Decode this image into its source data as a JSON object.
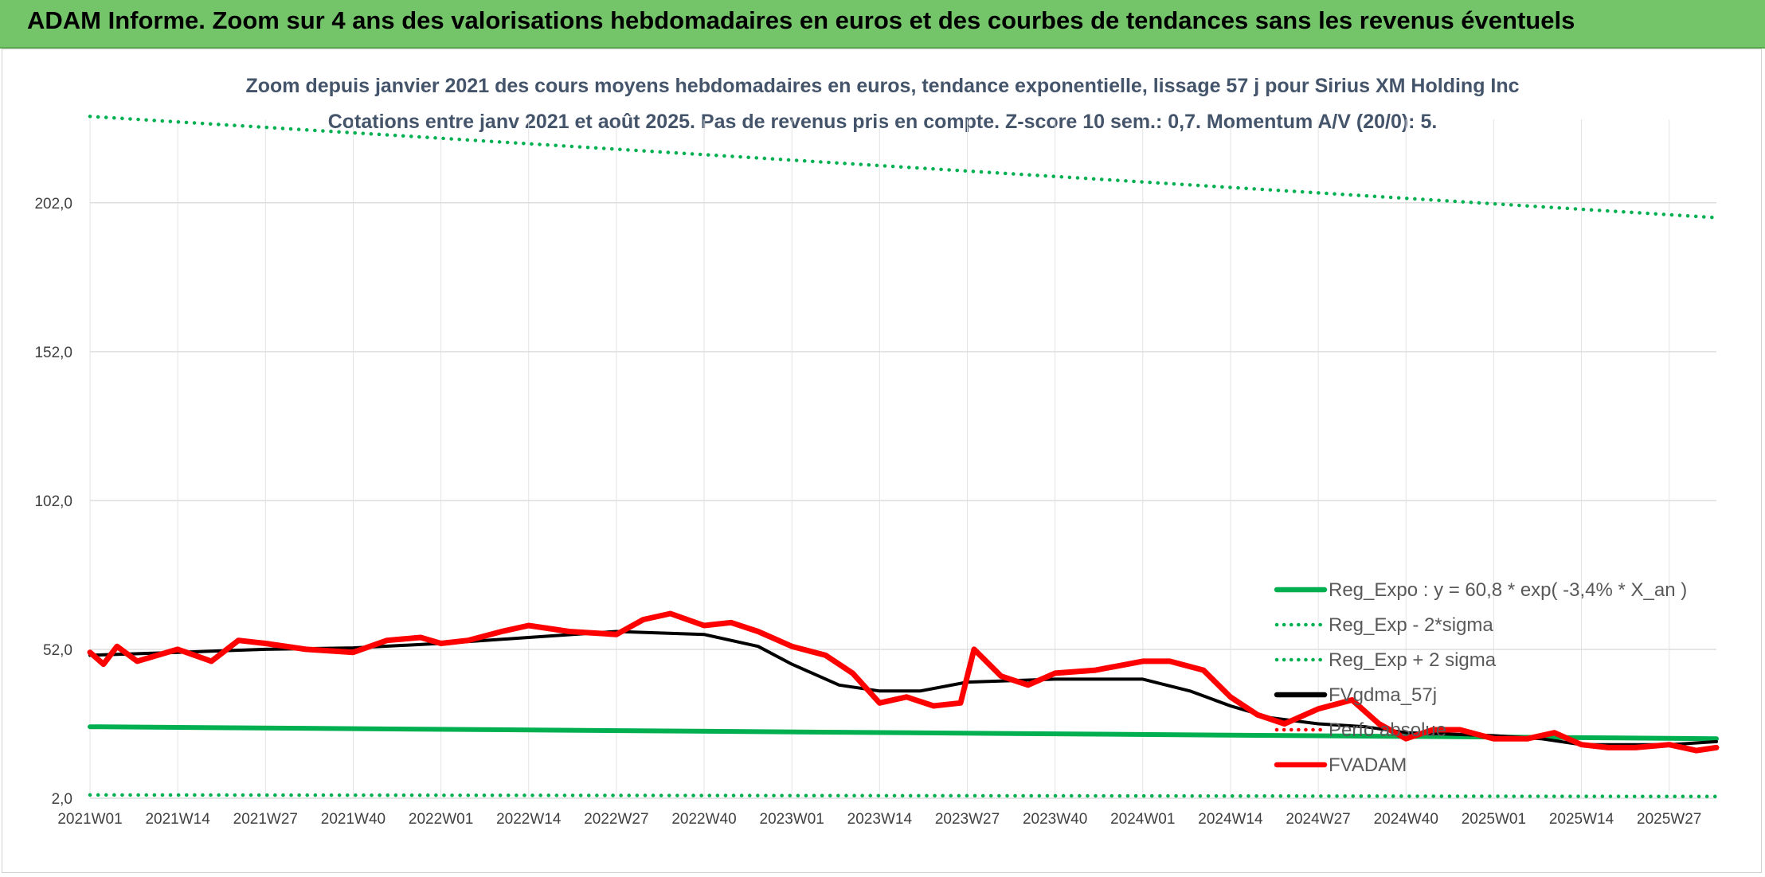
{
  "header": {
    "title": "ADAM Informe. Zoom sur 4 ans des valorisations hebdomadaires en euros et des courbes de tendances sans les revenus éventuels"
  },
  "chart_data": {
    "type": "line",
    "title": "Zoom depuis janvier 2021 des cours moyens hebdomadaires en euros, tendance exponentielle, lissage 57 j pour Sirius XM Holding Inc",
    "subtitle": "Cotations entre janv 2021 et août 2025. Pas de revenus pris en compte. Z-score 10 sem.: 0,7. Momentum A/V (20/0): 5.",
    "xlabel": "",
    "ylabel": "",
    "ylim": [
      2,
      230
    ],
    "yticks": [
      "2,0",
      "52,0",
      "102,0",
      "152,0",
      "202,0"
    ],
    "ytick_values": [
      2,
      52,
      102,
      152,
      202
    ],
    "xticks": [
      "2021W01",
      "2021W14",
      "2021W27",
      "2021W40",
      "2022W01",
      "2022W14",
      "2022W27",
      "2022W40",
      "2023W01",
      "2023W14",
      "2023W27",
      "2023W40",
      "2024W01",
      "2024W14",
      "2024W27",
      "2024W40",
      "2025W01",
      "2025W14",
      "2025W27"
    ],
    "grid": "vertical and horizontal",
    "legend_position": "right",
    "x_range": [
      "2021W01",
      "2025W34"
    ],
    "series": [
      {
        "name": "Reg_Expo : y = 60,8 * exp( -3,4% *  X_an )",
        "color": "#00b050",
        "style": "solid",
        "x": [
          "2021W01",
          "2025W34"
        ],
        "values": [
          26.0,
          22.0
        ]
      },
      {
        "name": "Reg_Exp - 2*sigma",
        "color": "#00b050",
        "style": "dotted",
        "x": [
          "2021W01",
          "2025W34"
        ],
        "values": [
          3.1,
          2.6
        ]
      },
      {
        "name": "Reg_Exp + 2 sigma",
        "color": "#00b050",
        "style": "dotted",
        "x": [
          "2021W01",
          "2025W34"
        ],
        "values": [
          231,
          197
        ]
      },
      {
        "name": "FVgdma_57j",
        "color": "#000000",
        "style": "solid",
        "x": [
          "2021W01",
          "2021W14",
          "2021W27",
          "2021W40",
          "2022W01",
          "2022W14",
          "2022W27",
          "2022W40",
          "2022W48",
          "2023W01",
          "2023W08",
          "2023W14",
          "2023W20",
          "2023W27",
          "2023W40",
          "2024W01",
          "2024W08",
          "2024W14",
          "2024W20",
          "2024W27",
          "2024W34",
          "2024W40",
          "2025W01",
          "2025W08",
          "2025W14",
          "2025W27",
          "2025W34"
        ],
        "values": [
          50,
          51,
          52,
          52.5,
          54,
          56,
          58,
          57,
          53,
          47,
          40,
          38,
          38,
          41,
          42,
          42,
          38,
          33,
          29,
          27,
          26,
          24,
          23,
          22,
          20,
          20,
          21
        ]
      },
      {
        "name": "Perfo absolue",
        "color": "#ff0000",
        "style": "dotted",
        "x": [],
        "values": []
      },
      {
        "name": "FVADAM",
        "color": "#ff0000",
        "style": "solid",
        "x": [
          "2021W01",
          "2021W03",
          "2021W05",
          "2021W08",
          "2021W14",
          "2021W19",
          "2021W23",
          "2021W27",
          "2021W33",
          "2021W40",
          "2021W45",
          "2021W50",
          "2022W01",
          "2022W05",
          "2022W10",
          "2022W14",
          "2022W20",
          "2022W27",
          "2022W31",
          "2022W35",
          "2022W40",
          "2022W44",
          "2022W48",
          "2023W01",
          "2023W06",
          "2023W10",
          "2023W14",
          "2023W18",
          "2023W22",
          "2023W26",
          "2023W28",
          "2023W32",
          "2023W36",
          "2023W40",
          "2023W46",
          "2024W01",
          "2024W05",
          "2024W10",
          "2024W14",
          "2024W18",
          "2024W22",
          "2024W27",
          "2024W32",
          "2024W36",
          "2024W40",
          "2024W44",
          "2024W48",
          "2025W01",
          "2025W06",
          "2025W10",
          "2025W14",
          "2025W18",
          "2025W22",
          "2025W27",
          "2025W31",
          "2025W34"
        ],
        "values": [
          51,
          47,
          53,
          48,
          52,
          48,
          55,
          54,
          52,
          51,
          55,
          56,
          54,
          55,
          58,
          60,
          58,
          57,
          62,
          64,
          60,
          61,
          58,
          53,
          50,
          44,
          34,
          36,
          33,
          34,
          52,
          43,
          40,
          44,
          45,
          48,
          48,
          45,
          36,
          30,
          27,
          32,
          35,
          27,
          22,
          25,
          25,
          22,
          22,
          24,
          20,
          19,
          19,
          20,
          18,
          19
        ]
      }
    ]
  }
}
